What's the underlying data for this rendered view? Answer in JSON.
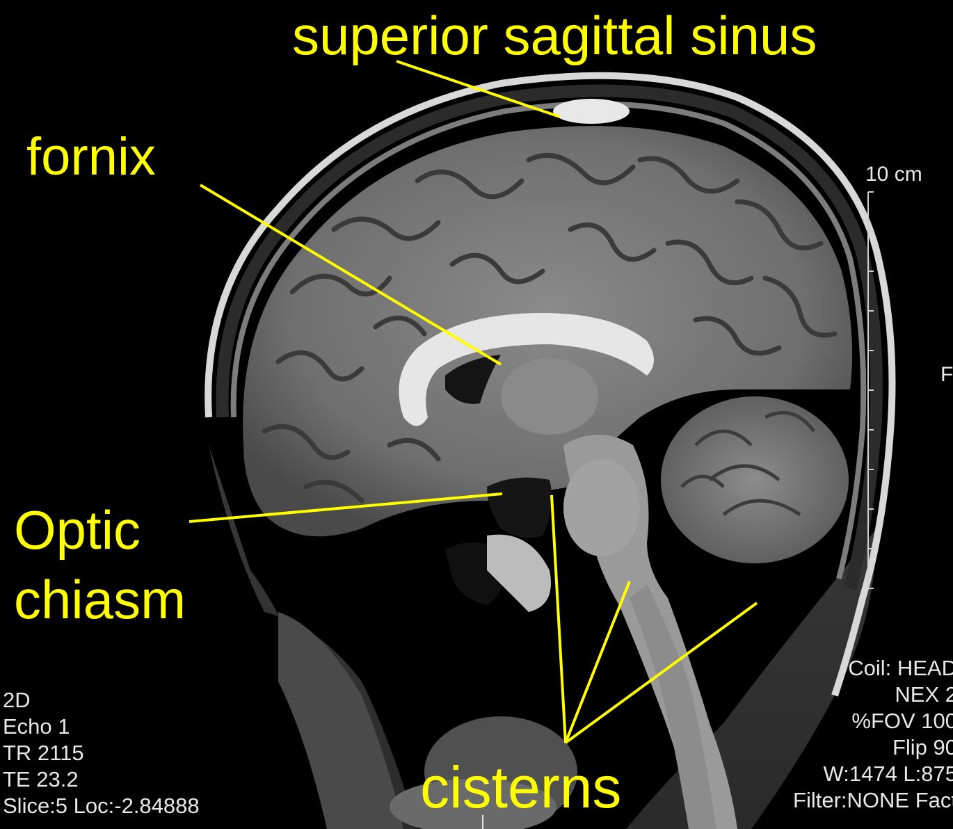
{
  "annotations": {
    "superior_sagittal_sinus": "superior sagittal sinus",
    "fornix": "fornix",
    "optic_chiasm": "Optic chiasm",
    "cisterns": "cisterns"
  },
  "scale_label": "10 cm",
  "edge_letter": "F",
  "metadata_left": [
    "2D",
    "Echo 1",
    "TR 2115",
    "TE 23.2",
    "Slice:5 Loc:-2.84888"
  ],
  "metadata_right": [
    "Coil: HEAD",
    "NEX 2",
    "%FOV 100",
    "Flip 90",
    "W:1474 L:875",
    "Filter:NONE Fact"
  ],
  "colors": {
    "annotation": "#ffff00",
    "background": "#000000",
    "overlay_text": "#e8e8e8"
  }
}
